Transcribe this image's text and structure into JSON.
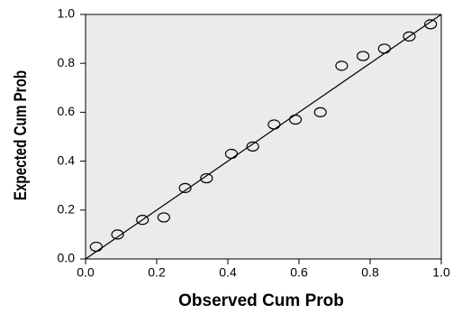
{
  "chart_data": {
    "type": "scatter",
    "xlabel": "Observed Cum Prob",
    "ylabel": "Expected Cum Prob",
    "x": [
      0.03,
      0.09,
      0.16,
      0.22,
      0.28,
      0.34,
      0.41,
      0.47,
      0.53,
      0.59,
      0.66,
      0.72,
      0.78,
      0.84,
      0.91,
      0.97
    ],
    "values": [
      0.05,
      0.1,
      0.16,
      0.17,
      0.29,
      0.33,
      0.43,
      0.46,
      0.55,
      0.57,
      0.6,
      0.79,
      0.83,
      0.86,
      0.91,
      0.96
    ],
    "color": "#000000",
    "xlim": [
      0,
      1
    ],
    "ylim": [
      0,
      1
    ],
    "xticks": [
      {
        "value": 0,
        "label": "0.0"
      },
      0.2,
      0.4,
      0.6,
      0.8,
      {
        "value": 1,
        "label": "1.0"
      }
    ],
    "yticks": [
      {
        "value": 0,
        "label": "0.0"
      },
      0.2,
      0.4,
      0.6,
      0.8,
      {
        "value": 1,
        "label": "1.0"
      }
    ],
    "grid": false
  }
}
